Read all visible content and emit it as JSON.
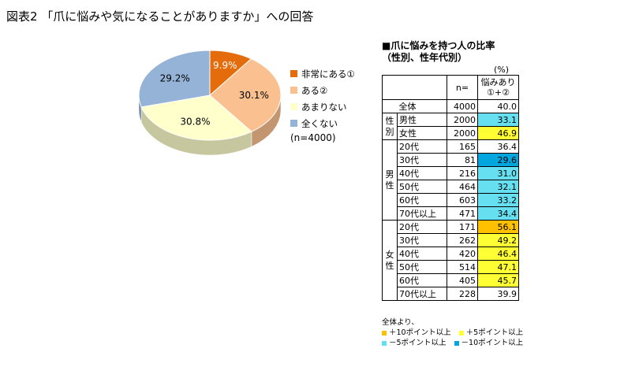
{
  "header": {
    "title": "図表2 「爪に悩みや気になることがありますか」への回答"
  },
  "chart_data": [
    {
      "type": "pie",
      "categories": [
        "非常にある①",
        "ある②",
        "あまりない",
        "全くない"
      ],
      "values": [
        9.9,
        30.1,
        30.8,
        29.2
      ],
      "labels": [
        "9.9%",
        "30.1%",
        "30.8%",
        "29.2%"
      ],
      "colors": [
        "#e46c0a",
        "#fac090",
        "#ffffcc",
        "#95b3d7"
      ],
      "note": "(n=4000)",
      "legend_position": "right"
    },
    {
      "type": "table",
      "title_line1": "■爪に悩みを持つ人の比率",
      "title_line2": "（性別、性年代別）",
      "unit": "(%)",
      "columns": [
        "n=",
        "悩みあり ①+②"
      ],
      "col_header_line1": "悩みあり",
      "col_header_line2": "①+②",
      "rows": [
        {
          "group": "",
          "label": "全体",
          "n": 4000,
          "value": 40.0,
          "value_text": "40.0",
          "color": "#ffffff"
        },
        {
          "group": "性別",
          "label": "男性",
          "n": 2000,
          "value": 33.1,
          "value_text": "33.1",
          "color": "#66e0f0"
        },
        {
          "group": "性別",
          "label": "女性",
          "n": 2000,
          "value": 46.9,
          "value_text": "46.9",
          "color": "#ffff33"
        },
        {
          "group": "男性",
          "label": "20代",
          "n": 165,
          "value": 36.4,
          "value_text": "36.4",
          "color": "#ffffff"
        },
        {
          "group": "男性",
          "label": "30代",
          "n": 81,
          "value": 29.6,
          "value_text": "29.6",
          "color": "#00a6dd"
        },
        {
          "group": "男性",
          "label": "40代",
          "n": 216,
          "value": 31.0,
          "value_text": "31.0",
          "color": "#66e0f0"
        },
        {
          "group": "男性",
          "label": "50代",
          "n": 464,
          "value": 32.1,
          "value_text": "32.1",
          "color": "#66e0f0"
        },
        {
          "group": "男性",
          "label": "60代",
          "n": 603,
          "value": 33.2,
          "value_text": "33.2",
          "color": "#66e0f0"
        },
        {
          "group": "男性",
          "label": "70代以上",
          "n": 471,
          "value": 34.4,
          "value_text": "34.4",
          "color": "#66e0f0"
        },
        {
          "group": "女性",
          "label": "20代",
          "n": 171,
          "value": 56.1,
          "value_text": "56.1",
          "color": "#ffc000"
        },
        {
          "group": "女性",
          "label": "30代",
          "n": 262,
          "value": 49.2,
          "value_text": "49.2",
          "color": "#ffff33"
        },
        {
          "group": "女性",
          "label": "40代",
          "n": 420,
          "value": 46.4,
          "value_text": "46.4",
          "color": "#ffff33"
        },
        {
          "group": "女性",
          "label": "50代",
          "n": 514,
          "value": 47.1,
          "value_text": "47.1",
          "color": "#ffff33"
        },
        {
          "group": "女性",
          "label": "60代",
          "n": 405,
          "value": 45.7,
          "value_text": "45.7",
          "color": "#ffff33"
        },
        {
          "group": "女性",
          "label": "70代以上",
          "n": 228,
          "value": 39.9,
          "value_text": "39.9",
          "color": "#ffffff"
        }
      ],
      "groups": {
        "gender": "性別",
        "male": "男性",
        "female": "女性"
      },
      "notes": {
        "heading": "全体より、",
        "items": [
          {
            "text": "＋10ポイント以上",
            "color": "#ffc000"
          },
          {
            "text": "＋5ポイント以上",
            "color": "#ffff33"
          },
          {
            "text": "－5ポイント以上",
            "color": "#66e0f0"
          },
          {
            "text": "－10ポイント以上",
            "color": "#00a6dd"
          }
        ]
      }
    }
  ]
}
